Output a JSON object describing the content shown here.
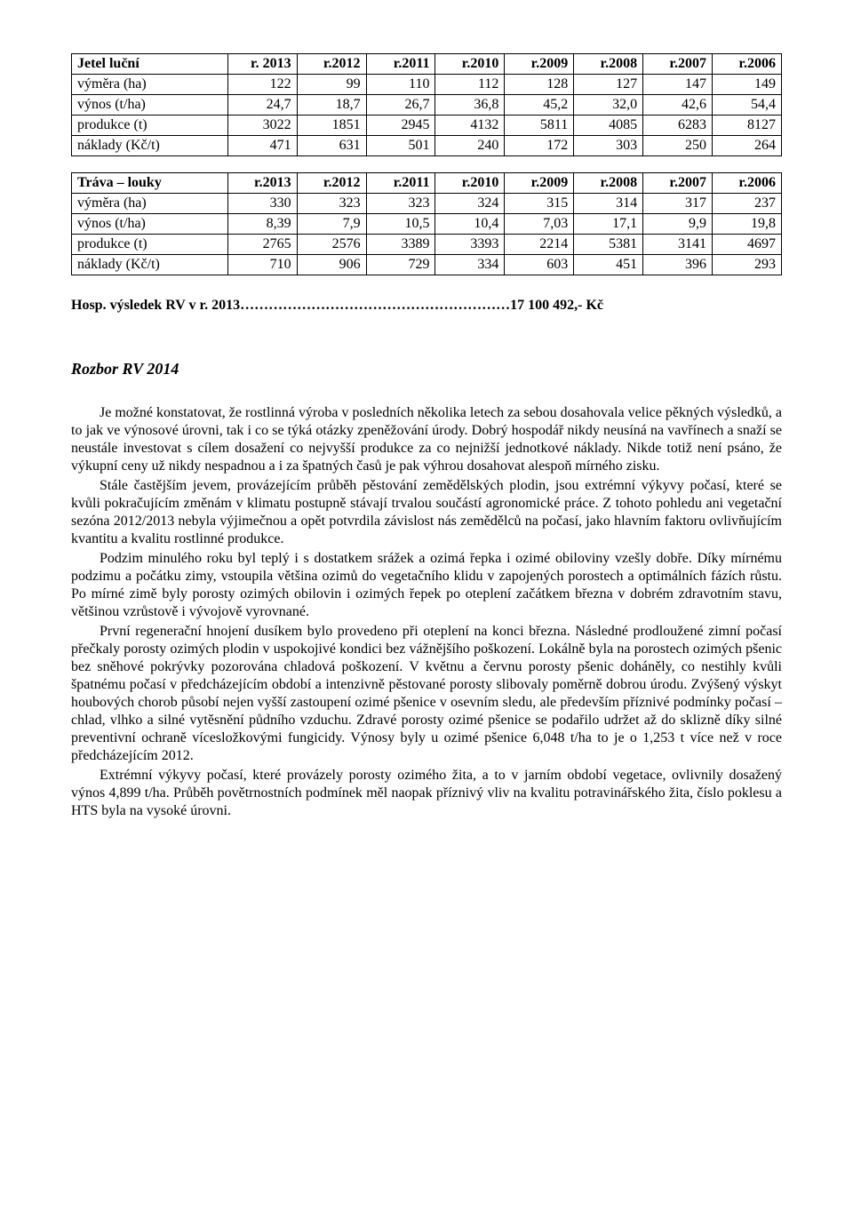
{
  "table1": {
    "header": [
      "Jetel luční",
      "r. 2013",
      "r.2012",
      "r.2011",
      "r.2010",
      "r.2009",
      "r.2008",
      "r.2007",
      "r.2006"
    ],
    "rows": [
      [
        "výměra (ha)",
        "122",
        "99",
        "110",
        "112",
        "128",
        "127",
        "147",
        "149"
      ],
      [
        "výnos    (t/ha)",
        "24,7",
        "18,7",
        "26,7",
        "36,8",
        "45,2",
        "32,0",
        "42,6",
        "54,4"
      ],
      [
        "produkce  (t)",
        "3022",
        "1851",
        "2945",
        "4132",
        "5811",
        "4085",
        "6283",
        "8127"
      ],
      [
        "náklady (Kč/t)",
        "471",
        "631",
        "501",
        "240",
        "172",
        "303",
        "250",
        "264"
      ]
    ]
  },
  "table2": {
    "header": [
      "Tráva – louky",
      "r.2013",
      "r.2012",
      "r.2011",
      "r.2010",
      "r.2009",
      "r.2008",
      "r.2007",
      "r.2006"
    ],
    "rows": [
      [
        "výměra (ha)",
        "330",
        "323",
        "323",
        "324",
        "315",
        "314",
        "317",
        "237"
      ],
      [
        "výnos    (t/ha)",
        "8,39",
        "7,9",
        "10,5",
        "10,4",
        "7,03",
        "17,1",
        "9,9",
        "19,8"
      ],
      [
        "produkce  (t)",
        "2765",
        "2576",
        "3389",
        "3393",
        "2214",
        "5381",
        "3141",
        "4697"
      ],
      [
        "náklady (Kč/t)",
        "710",
        "906",
        "729",
        "334",
        "603",
        "451",
        "396",
        "293"
      ]
    ]
  },
  "colwidths": [
    "22%",
    "9.75%",
    "9.75%",
    "9.75%",
    "9.75%",
    "9.75%",
    "9.75%",
    "9.75%",
    "9.75%"
  ],
  "hosp": {
    "label": "Hosp. výsledek   RV  v r. 2013…………………………………………………17 100 492,- Kč"
  },
  "section": {
    "title": "Rozbor RV 2014"
  },
  "paragraphs": {
    "p1": "Je možné konstatovat, že rostlinná výroba v posledních několika letech za sebou dosahovala velice pěkných výsledků, a to jak ve výnosové úrovni, tak i co se týká otázky zpeněžování úrody. Dobrý hospodář nikdy neusíná na vavřínech a snaží se neustále investovat s cílem dosažení co nejvyšší produkce za co nejnižší jednotkové náklady. Nikde totiž není psáno, že výkupní ceny už nikdy nespadnou a i za špatných časů je pak výhrou dosahovat alespoň mírného zisku.",
    "p2": "Stále častějším jevem, provázejícím průběh pěstování zemědělských plodin, jsou extrémní výkyvy počasí, které se kvůli pokračujícím změnám v klimatu postupně stávají trvalou součástí agronomické práce. Z tohoto pohledu ani vegetační sezóna 2012/2013 nebyla výjimečnou a opět potvrdila závislost nás zemědělců na počasí, jako hlavním faktoru ovlivňujícím kvantitu a kvalitu rostlinné produkce.",
    "p3": "Podzim minulého roku byl teplý i s dostatkem srážek a ozimá řepka i ozimé obiloviny vzešly dobře. Díky mírnému podzimu a počátku zimy, vstoupila většina ozimů do vegetačního klidu v zapojených porostech a optimálních fázích růstu.  Po mírné zimě byly porosty ozimých obilovin i ozimých řepek po oteplení začátkem března v dobrém zdravotním stavu, většinou vzrůstově i vývojově vyrovnané.",
    "p4": "První regenerační hnojení dusíkem bylo provedeno při oteplení na konci března. Následné prodloužené zimní počasí přečkaly porosty ozimých plodin v uspokojivé kondici bez vážnějšího poškození. Lokálně byla na porostech ozimých pšenic bez sněhové pokrývky pozorována chladová poškození. V květnu a červnu porosty pšenic doháněly, co nestihly kvůli špatnému počasí v předcházejícím období a intenzivně pěstované porosty slibovaly poměrně dobrou úrodu. Zvýšený výskyt houbových chorob působí nejen vyšší zastoupení ozimé pšenice v osevním sledu, ale především příznivé podmínky počasí – chlad, vlhko a silné vytěsnění půdního vzduchu. Zdravé porosty ozimé pšenice se podařilo udržet až do sklizně díky silné preventivní ochraně vícesložkovými fungicidy. Výnosy byly u ozimé pšenice 6,048 t/ha to je o 1,253 t více než v roce předcházejícím 2012.",
    "p5": "Extrémní výkyvy počasí, které provázely porosty ozimého žita, a to v jarním období vegetace, ovlivnily dosažený výnos 4,899 t/ha. Průběh povětrnostních podmínek měl naopak příznivý vliv na kvalitu potravinářského žita, číslo poklesu a HTS byla na vysoké úrovni."
  }
}
